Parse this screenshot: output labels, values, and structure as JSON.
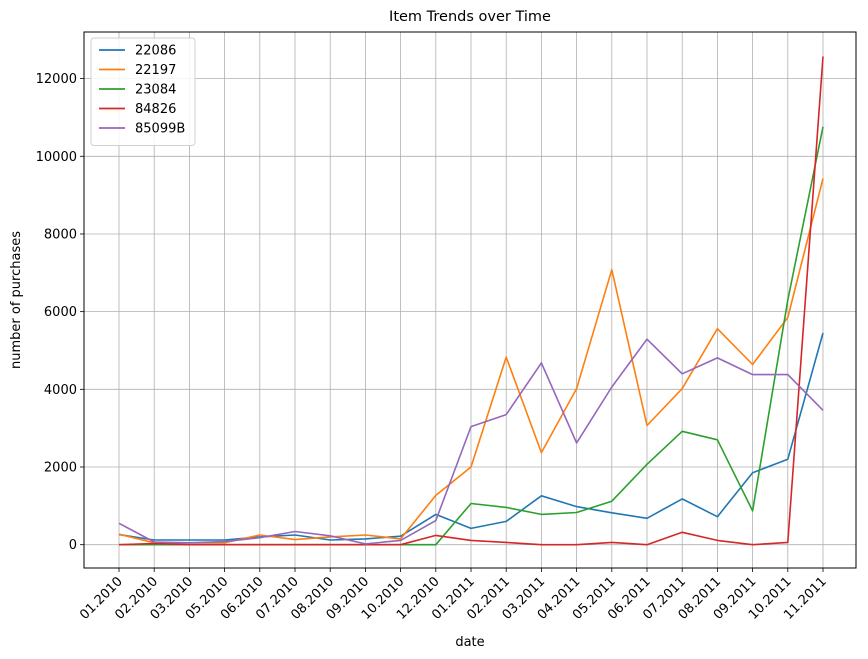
{
  "chart_data": {
    "type": "line",
    "title": "Item Trends over Time",
    "xlabel": "date",
    "ylabel": "number of purchases",
    "categories": [
      "01.2010",
      "02.2010",
      "03.2010",
      "05.2010",
      "06.2010",
      "07.2010",
      "08.2010",
      "09.2010",
      "10.2010",
      "12.2010",
      "01.2011",
      "02.2011",
      "03.2011",
      "04.2011",
      "05.2011",
      "06.2011",
      "07.2011",
      "08.2011",
      "09.2011",
      "10.2011",
      "11.2011"
    ],
    "ylim": [
      -600,
      13200
    ],
    "yticks": [
      0,
      2000,
      4000,
      6000,
      8000,
      10000,
      12000
    ],
    "grid": true,
    "legend_position": "top-left",
    "series": [
      {
        "name": "22086",
        "color": "#1f77b4",
        "values": [
          260,
          120,
          120,
          120,
          200,
          250,
          120,
          150,
          220,
          780,
          420,
          600,
          1260,
          980,
          820,
          680,
          1180,
          720,
          1850,
          2200,
          5450
        ]
      },
      {
        "name": "22197",
        "color": "#ff7f0e",
        "values": [
          270,
          50,
          50,
          50,
          250,
          130,
          200,
          250,
          150,
          1270,
          2000,
          4830,
          2370,
          4020,
          7080,
          3070,
          4020,
          5560,
          4640,
          5850,
          9430
        ]
      },
      {
        "name": "23084",
        "color": "#2ca02c",
        "values": [
          0,
          0,
          0,
          0,
          0,
          0,
          0,
          0,
          0,
          0,
          1060,
          960,
          780,
          830,
          1120,
          2070,
          2920,
          2700,
          870,
          6300,
          10760
        ]
      },
      {
        "name": "84826",
        "color": "#d62728",
        "values": [
          0,
          30,
          0,
          0,
          0,
          0,
          0,
          0,
          0,
          240,
          110,
          60,
          0,
          0,
          60,
          0,
          320,
          110,
          0,
          60,
          12570
        ]
      },
      {
        "name": "85099B",
        "color": "#9467bd",
        "values": [
          550,
          70,
          50,
          80,
          180,
          340,
          230,
          20,
          110,
          620,
          3040,
          3350,
          4680,
          2620,
          4060,
          5290,
          4400,
          4810,
          4380,
          4380,
          3460
        ]
      }
    ]
  }
}
